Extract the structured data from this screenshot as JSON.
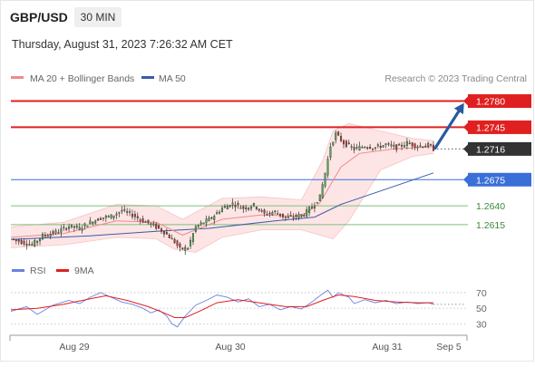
{
  "header": {
    "symbol": "GBP/USD",
    "timeframe": "30 MIN",
    "datetime": "Thursday, August 31, 2023 7:26:32 AM CET"
  },
  "legend": {
    "ma20_label": "MA 20 + Bollinger Bands",
    "ma50_label": "MA 50",
    "credit": "Research © 2023 Trading Central",
    "rsi_label": "RSI",
    "rsi_ma_label": "9MA"
  },
  "colors": {
    "ma20": "#f08a8a",
    "ma50": "#3b5ba5",
    "band_fill": "#fde0e0",
    "resistance": "#e02020",
    "pivot_line": "#3a6fd8",
    "support": "#7cc07c",
    "price_box": "#333333",
    "arrow": "#2a5aa0",
    "rsi": "#6a82e0",
    "rsi_ma": "#e02020",
    "candle_up": "#4caf50",
    "candle_down": "#c0392b",
    "rsi_grid": "#bdbdbd"
  },
  "chart_data": {
    "type": "candlestick",
    "price_levels": [
      {
        "value": "1.2780",
        "kind": "resistance"
      },
      {
        "value": "1.2745",
        "kind": "resistance"
      },
      {
        "value": "1.2716",
        "kind": "last_price"
      },
      {
        "value": "1.2675",
        "kind": "pivot"
      },
      {
        "value": "1.2640",
        "kind": "support"
      },
      {
        "value": "1.2615",
        "kind": "support"
      }
    ],
    "x_ticks": [
      "Aug 29",
      "Aug 30",
      "Aug 31",
      "Sep 5"
    ],
    "rsi_ticks": [
      "70",
      "50",
      "30"
    ],
    "price_range": [
      1.257,
      1.28
    ],
    "rsi_range": [
      20,
      85
    ],
    "price_path": [
      [
        0,
        1.2596
      ],
      [
        8,
        1.2588
      ],
      [
        12,
        1.26
      ],
      [
        18,
        1.2606
      ],
      [
        22,
        1.2613
      ],
      [
        26,
        1.261
      ],
      [
        30,
        1.2618
      ],
      [
        34,
        1.2624
      ],
      [
        38,
        1.2626
      ],
      [
        42,
        1.2634
      ],
      [
        46,
        1.2628
      ],
      [
        50,
        1.262
      ],
      [
        54,
        1.2614
      ],
      [
        58,
        1.2605
      ],
      [
        62,
        1.2592
      ],
      [
        64,
        1.2582
      ],
      [
        67,
        1.2584
      ],
      [
        70,
        1.2612
      ],
      [
        73,
        1.2618
      ],
      [
        76,
        1.2624
      ],
      [
        80,
        1.2637
      ],
      [
        84,
        1.2643
      ],
      [
        88,
        1.2637
      ],
      [
        92,
        1.2641
      ],
      [
        96,
        1.2629
      ],
      [
        100,
        1.2632
      ],
      [
        104,
        1.2624
      ],
      [
        108,
        1.2626
      ],
      [
        111,
        1.2629
      ],
      [
        114,
        1.2639
      ],
      [
        117,
        1.2652
      ],
      [
        119,
        1.2684
      ],
      [
        121,
        1.272
      ],
      [
        123,
        1.2736
      ],
      [
        126,
        1.2724
      ],
      [
        130,
        1.2716
      ],
      [
        134,
        1.272
      ],
      [
        138,
        1.2718
      ],
      [
        142,
        1.2722
      ],
      [
        146,
        1.2718
      ],
      [
        150,
        1.2724
      ],
      [
        154,
        1.272
      ],
      [
        158,
        1.2721
      ],
      [
        160,
        1.2716
      ]
    ],
    "ma20_path": [
      [
        0,
        1.2598
      ],
      [
        20,
        1.2603
      ],
      [
        40,
        1.262
      ],
      [
        55,
        1.2618
      ],
      [
        65,
        1.2601
      ],
      [
        80,
        1.2622
      ],
      [
        95,
        1.2628
      ],
      [
        110,
        1.2626
      ],
      [
        117,
        1.2644
      ],
      [
        121,
        1.2668
      ],
      [
        125,
        1.2692
      ],
      [
        132,
        1.271
      ],
      [
        145,
        1.2716
      ],
      [
        160,
        1.2719
      ]
    ],
    "ma50_path": [
      [
        0,
        1.2595
      ],
      [
        30,
        1.26
      ],
      [
        55,
        1.2606
      ],
      [
        75,
        1.261
      ],
      [
        100,
        1.262
      ],
      [
        115,
        1.2625
      ],
      [
        125,
        1.2642
      ],
      [
        140,
        1.266
      ],
      [
        160,
        1.2684
      ]
    ],
    "bb_upper_path": [
      [
        0,
        1.2612
      ],
      [
        20,
        1.2618
      ],
      [
        40,
        1.2642
      ],
      [
        55,
        1.264
      ],
      [
        65,
        1.2622
      ],
      [
        80,
        1.265
      ],
      [
        95,
        1.2652
      ],
      [
        110,
        1.2648
      ],
      [
        118,
        1.27
      ],
      [
        122,
        1.274
      ],
      [
        128,
        1.275
      ],
      [
        140,
        1.274
      ],
      [
        152,
        1.273
      ],
      [
        160,
        1.2727
      ]
    ],
    "bb_lower_path": [
      [
        0,
        1.2584
      ],
      [
        20,
        1.2588
      ],
      [
        40,
        1.2598
      ],
      [
        55,
        1.2596
      ],
      [
        62,
        1.2582
      ],
      [
        70,
        1.2578
      ],
      [
        80,
        1.2598
      ],
      [
        95,
        1.2608
      ],
      [
        110,
        1.2608
      ],
      [
        118,
        1.26
      ],
      [
        122,
        1.2596
      ],
      [
        128,
        1.262
      ],
      [
        140,
        1.2688
      ],
      [
        152,
        1.2706
      ],
      [
        160,
        1.271
      ]
    ],
    "rsi_path": [
      [
        0,
        46
      ],
      [
        6,
        52
      ],
      [
        10,
        42
      ],
      [
        16,
        54
      ],
      [
        22,
        60
      ],
      [
        26,
        56
      ],
      [
        30,
        64
      ],
      [
        34,
        70
      ],
      [
        38,
        64
      ],
      [
        42,
        58
      ],
      [
        46,
        55
      ],
      [
        50,
        50
      ],
      [
        53,
        44
      ],
      [
        56,
        48
      ],
      [
        59,
        40
      ],
      [
        61,
        30
      ],
      [
        63,
        26
      ],
      [
        66,
        40
      ],
      [
        70,
        54
      ],
      [
        74,
        60
      ],
      [
        78,
        67
      ],
      [
        82,
        64
      ],
      [
        86,
        58
      ],
      [
        90,
        62
      ],
      [
        94,
        52
      ],
      [
        98,
        55
      ],
      [
        102,
        48
      ],
      [
        106,
        52
      ],
      [
        110,
        49
      ],
      [
        114,
        58
      ],
      [
        117,
        66
      ],
      [
        120,
        73
      ],
      [
        122,
        64
      ],
      [
        124,
        70
      ],
      [
        128,
        64
      ],
      [
        130,
        56
      ],
      [
        134,
        61
      ],
      [
        138,
        57
      ],
      [
        142,
        60
      ],
      [
        146,
        56
      ],
      [
        150,
        58
      ],
      [
        154,
        56
      ],
      [
        158,
        57
      ],
      [
        160,
        55
      ]
    ],
    "rsi_ma_path": [
      [
        0,
        48
      ],
      [
        10,
        50
      ],
      [
        20,
        55
      ],
      [
        30,
        62
      ],
      [
        36,
        66
      ],
      [
        44,
        60
      ],
      [
        52,
        52
      ],
      [
        58,
        44
      ],
      [
        62,
        38
      ],
      [
        66,
        38
      ],
      [
        72,
        47
      ],
      [
        78,
        57
      ],
      [
        86,
        61
      ],
      [
        94,
        57
      ],
      [
        104,
        52
      ],
      [
        112,
        52
      ],
      [
        118,
        60
      ],
      [
        124,
        67
      ],
      [
        130,
        65
      ],
      [
        138,
        60
      ],
      [
        146,
        58
      ],
      [
        154,
        57
      ],
      [
        160,
        57
      ]
    ]
  }
}
